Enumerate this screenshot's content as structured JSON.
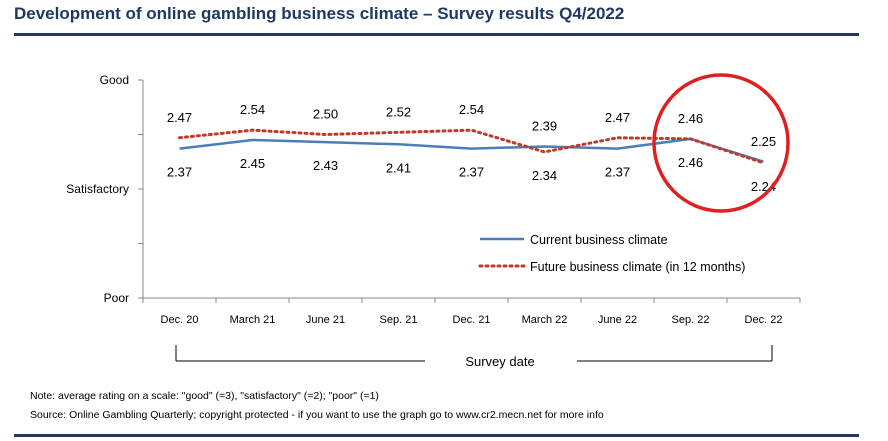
{
  "title": "Development of online gambling business climate – Survey results Q4/2022",
  "note": "Note: average rating on a scale: \"good\" (=3), \"satisfactory\" (=2); \"poor\" (=1)",
  "source": "Source: Online Gambling Quarterly; copyright protected - if you want to use the graph go to www.cr2.mecn.net for more info",
  "colors": {
    "title": "#1f3864",
    "current": "#4a7ebb",
    "future": "#c0392b",
    "highlight_circle": "#e02020"
  },
  "chart_data": {
    "type": "line",
    "title": "Development of online gambling business climate – Survey results Q4/2022",
    "xlabel": "Survey date",
    "ylabel": "",
    "categories": [
      "Dec. 20",
      "March 21",
      "June 21",
      "Sep. 21",
      "Dec. 21",
      "March 22",
      "June 22",
      "Sep. 22",
      "Dec. 22"
    ],
    "y_ticks": [
      {
        "value": 3,
        "label": "Good"
      },
      {
        "value": 2,
        "label": "Satisfactory"
      },
      {
        "value": 1,
        "label": "Poor"
      }
    ],
    "ylim": [
      1,
      3
    ],
    "legend_position": "bottom-right",
    "grid": false,
    "series": [
      {
        "name": "Current business climate",
        "style": "solid",
        "values": [
          2.37,
          2.45,
          2.43,
          2.41,
          2.37,
          2.39,
          2.37,
          2.46,
          2.25
        ],
        "labels": [
          "2.37",
          "2.45",
          "2.43",
          "2.41",
          "2.37",
          "2.39",
          "2.37",
          "2.46",
          "2.25"
        ]
      },
      {
        "name": "Future business climate (in 12 months)",
        "style": "dotted",
        "values": [
          2.47,
          2.54,
          2.5,
          2.52,
          2.54,
          2.34,
          2.47,
          2.46,
          2.24
        ],
        "labels": [
          "2.47",
          "2.54",
          "2.50",
          "2.52",
          "2.54",
          "2.34",
          "2.47",
          "2.46",
          "2.24"
        ]
      }
    ],
    "highlight": "Sep. 22 – Dec. 22 circled in red"
  }
}
